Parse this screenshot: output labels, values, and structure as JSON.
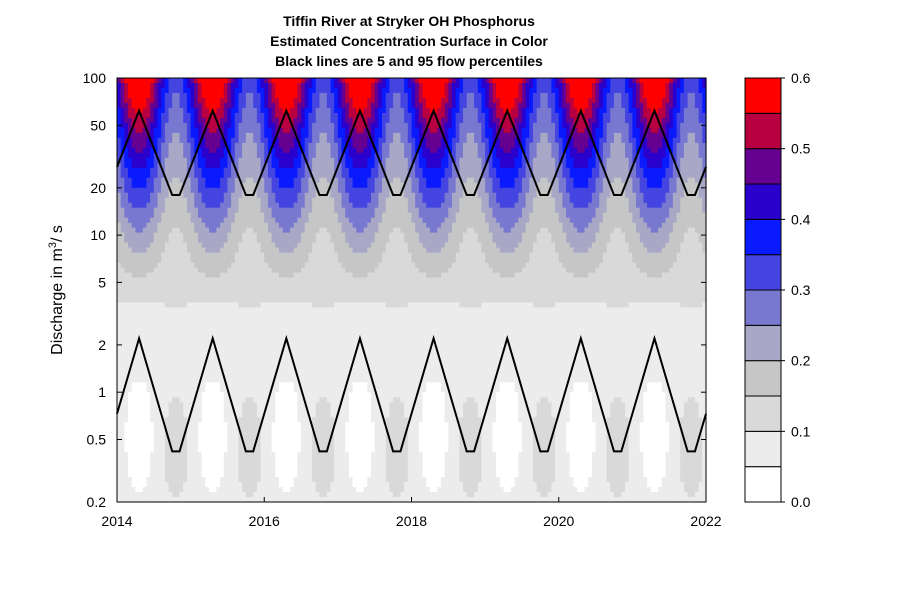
{
  "chart_data": {
    "type": "heatmap",
    "title": [
      "Tiffin River at Stryker OH    Phosphorus",
      "Estimated Concentration Surface in Color",
      "Black lines are 5 and 95 flow percentiles"
    ],
    "xlabel": "",
    "ylabel": {
      "prefix": "Discharge in m",
      "sup": "3",
      "suffix": "/ s"
    },
    "x_range": [
      2014,
      2022
    ],
    "x_ticks": [
      "2014",
      "2016",
      "2018",
      "2020",
      "2022"
    ],
    "y_scale": "log",
    "y_range": [
      0.2,
      100
    ],
    "y_ticks": [
      "100",
      "50",
      "20",
      "10",
      "5",
      "2",
      "1",
      "0.5",
      "0.2"
    ],
    "colorbar": {
      "levels": [
        0.0,
        0.05,
        0.1,
        0.15,
        0.2,
        0.25,
        0.3,
        0.35,
        0.4,
        0.45,
        0.5,
        0.55,
        0.6
      ],
      "colors": [
        "#ffffff",
        "#ececec",
        "#d9d9d9",
        "#c6c6c6",
        "#a8a8c6",
        "#7878d0",
        "#4444e0",
        "#0a1aff",
        "#2a00cc",
        "#650090",
        "#b80040",
        "#ff0000"
      ],
      "tick_labels": [
        "0.0",
        "0.1",
        "0.2",
        "0.3",
        "0.4",
        "0.5",
        "0.6"
      ]
    },
    "flow_percentile_lines": [
      {
        "percentile": 95,
        "min": 18,
        "max": 62
      },
      {
        "percentile": 5,
        "min": 0.42,
        "max": 2.2
      }
    ],
    "annual_cycle_peak_years": [
      2014.3,
      2015.3,
      2016.3,
      2017.3,
      2018.3,
      2019.3,
      2020.3,
      2021.3
    ]
  }
}
